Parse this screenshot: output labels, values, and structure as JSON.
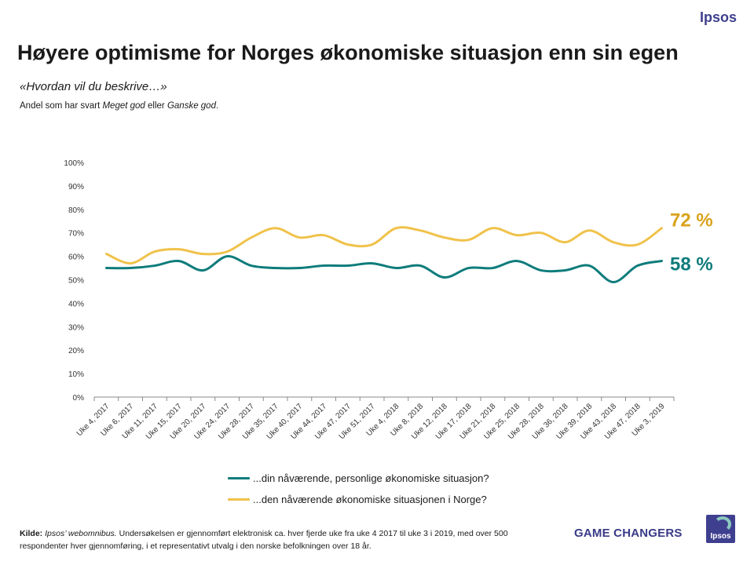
{
  "brand": {
    "top_logo": "Ipsos",
    "game_changers": "GAME CHANGERS",
    "logo_text": "Ipsos"
  },
  "header": {
    "title": "Høyere optimisme for Norges økonomiske situasjon enn sin egen",
    "subtitle": "«Hvordan vil du beskrive…»",
    "note_prefix": "Andel som har svart ",
    "note_em1": "Meget god",
    "note_mid": " eller ",
    "note_em2": "Ganske god",
    "note_suffix": "."
  },
  "footer": {
    "source_label": "Kilde:",
    "source_name": "Ipsos’ webomnibus.",
    "source_text": " Undersøkelsen er gjennomført elektronisk ca. hver fjerde uke fra uke 4 2017 til uke 3 i 2019, med over 500 respondenter hver gjennomføring, i et representativt utvalg i den norske befolkningen over 18 år."
  },
  "colors": {
    "norway": "#f0c24b",
    "personal": "#0e7c7b",
    "norway_label": "#d9a21c",
    "personal_label": "#0e7c7b",
    "axis": "#8a8a8a"
  },
  "chart_data": {
    "type": "line",
    "title": "Høyere optimisme for Norges økonomiske situasjon enn sin egen",
    "ylim": [
      0,
      100
    ],
    "y_ticks": [
      "0%",
      "10%",
      "20%",
      "30%",
      "40%",
      "50%",
      "60%",
      "70%",
      "80%",
      "90%",
      "100%"
    ],
    "categories": [
      "Uke 4, 2017",
      "Uke 6, 2017",
      "Uke 11, 2017",
      "Uke 15, 2017",
      "Uke 20, 2017",
      "Uke 24, 2017",
      "Uke 28, 2017",
      "Uke 35, 2017",
      "Uke 40, 2017",
      "Uke 44, 2017",
      "Uke 47, 2017",
      "Uke 51, 2017",
      "Uke 4, 2018",
      "Uke 8, 2018",
      "Uke 12, 2018",
      "Uke 17, 2018",
      "Uke 21, 2018",
      "Uke 25, 2018",
      "Uke 28, 2018",
      "Uke 36, 2018",
      "Uke 39, 2018",
      "Uke 43, 2018",
      "Uke 47, 2018",
      "Uke 3, 2019"
    ],
    "series": [
      {
        "name": "...din nåværende, personlige økonomiske situasjon?",
        "color": "#0e7c7b",
        "values": [
          55,
          55,
          56,
          58,
          54,
          60,
          56,
          55,
          55,
          56,
          56,
          57,
          55,
          56,
          51,
          55,
          55,
          58,
          54,
          54,
          56,
          49,
          56,
          58
        ],
        "end_label": "58 %"
      },
      {
        "name": "...den nåværende økonomiske situasjonen i Norge?",
        "color": "#f0c24b",
        "values": [
          61,
          57,
          62,
          63,
          61,
          62,
          68,
          72,
          68,
          69,
          65,
          65,
          72,
          71,
          68,
          67,
          72,
          69,
          70,
          66,
          71,
          66,
          65,
          72
        ],
        "end_label": "72 %"
      }
    ]
  }
}
